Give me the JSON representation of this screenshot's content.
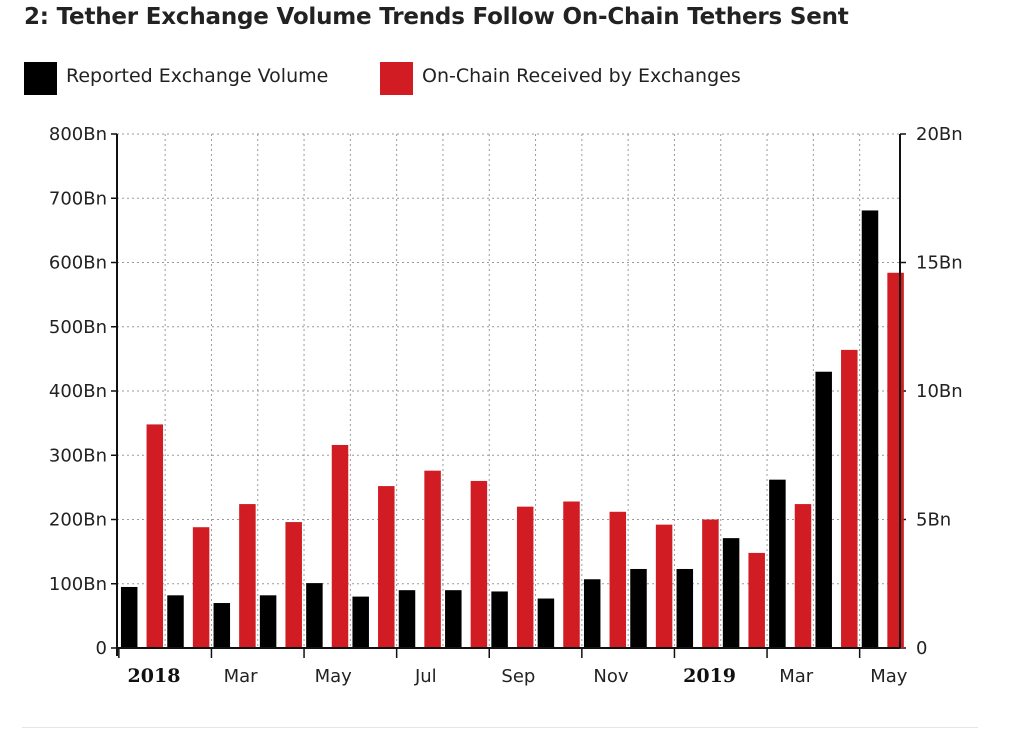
{
  "title": "2: Tether Exchange Volume Trends Follow On-Chain Tethers Sent",
  "colors": {
    "series_exchange": "#000000",
    "series_onchain": "#d01c22",
    "grid": "#9a9a9a",
    "axis": "#111111"
  },
  "chart_data": {
    "type": "bar",
    "title": "2: Tether Exchange Volume Trends Follow On-Chain Tethers Sent",
    "legend": "top-left",
    "grid": true,
    "categories": [
      "2018-01",
      "2018-02",
      "2018-03",
      "2018-04",
      "2018-05",
      "2018-06",
      "2018-07",
      "2018-08",
      "2018-09",
      "2018-10",
      "2018-11",
      "2018-12",
      "2019-01",
      "2019-02",
      "2019-03",
      "2019-04",
      "2019-05"
    ],
    "x_tick_labels": [
      "2018",
      "Mar",
      "May",
      "Jul",
      "Sep",
      "Nov",
      "2019",
      "Mar",
      "May"
    ],
    "y_left": {
      "ylim": [
        0,
        800
      ],
      "ticks": [
        "0",
        "100Bn",
        "200Bn",
        "300Bn",
        "400Bn",
        "500Bn",
        "600Bn",
        "700Bn",
        "800Bn"
      ]
    },
    "y_right": {
      "ylim": [
        0,
        20
      ],
      "ticks": [
        "0",
        "5Bn",
        "10Bn",
        "15Bn",
        "20Bn"
      ]
    },
    "series": [
      {
        "name": "Reported Exchange Volume",
        "axis": "left",
        "unit": "Bn",
        "values": [
          95,
          82,
          70,
          82,
          101,
          80,
          90,
          90,
          88,
          77,
          107,
          123,
          123,
          171,
          262,
          430,
          681
        ]
      },
      {
        "name": "On-Chain Received by Exchanges",
        "axis": "right",
        "unit": "Bn",
        "values": [
          8.7,
          4.7,
          5.6,
          4.9,
          7.9,
          6.3,
          6.9,
          6.5,
          5.5,
          5.7,
          5.3,
          4.8,
          5.0,
          3.7,
          5.6,
          11.6,
          14.6
        ]
      }
    ]
  }
}
